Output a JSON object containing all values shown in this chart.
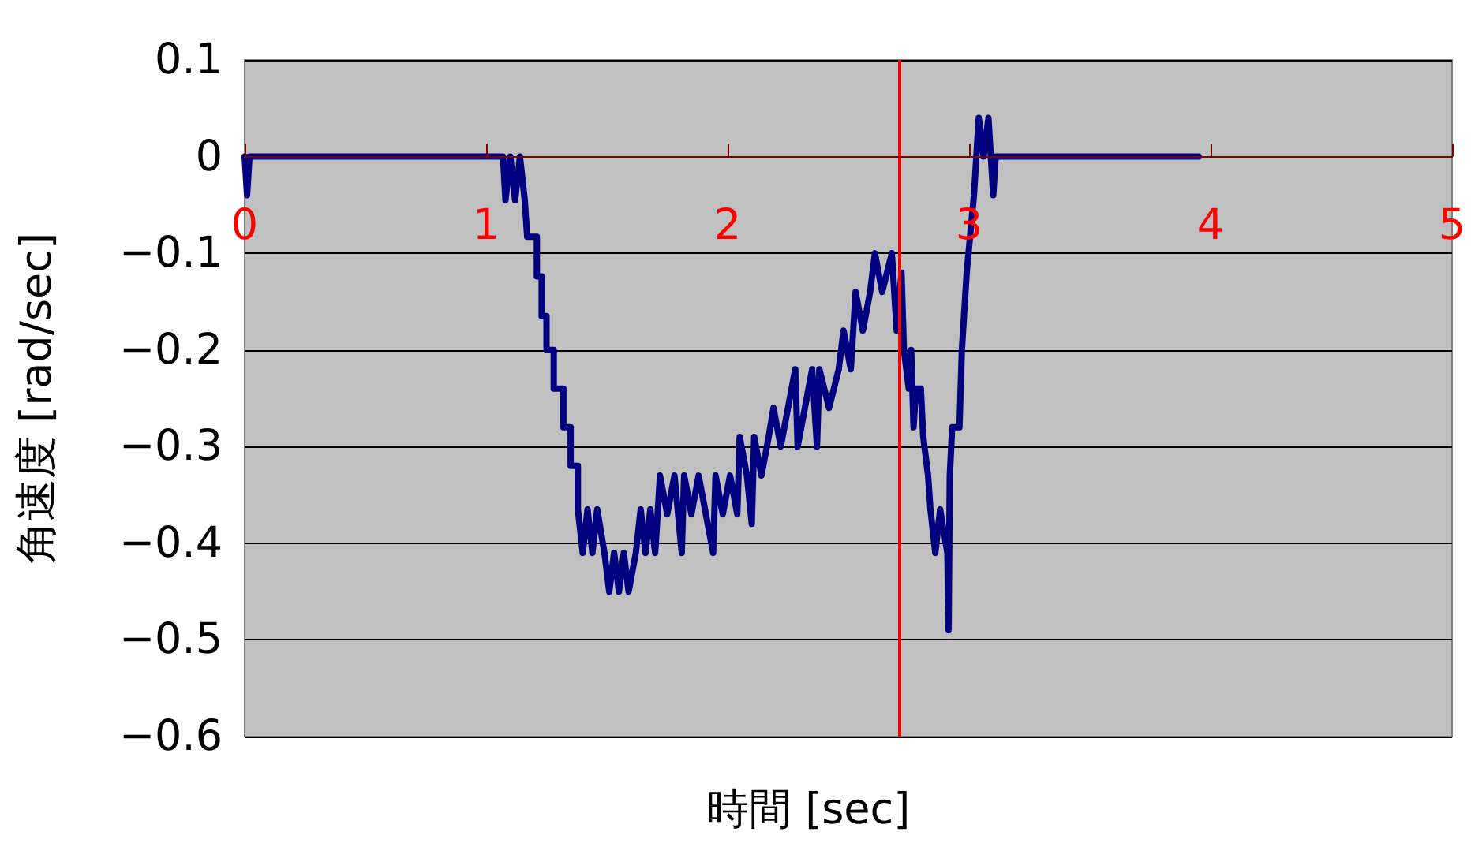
{
  "chart_data": {
    "type": "line",
    "xlabel": "時間 [sec]",
    "ylabel": "角速度 [rad/sec]",
    "xlim": [
      0,
      5
    ],
    "xticks": [
      0,
      1,
      2,
      3,
      4,
      5
    ],
    "ylim": [
      -0.6,
      0.1
    ],
    "yticks": [
      0.1,
      0,
      {
        "value": -0.1,
        "label": "−0.1"
      },
      {
        "value": -0.2,
        "label": "−0.2"
      },
      {
        "value": -0.3,
        "label": "−0.3"
      },
      {
        "value": -0.4,
        "label": "−0.4"
      },
      {
        "value": -0.5,
        "label": "−0.5"
      },
      {
        "value": -0.6,
        "label": "−0.6"
      }
    ],
    "grid": "y",
    "line_style": "solid",
    "ref_lines": [
      {
        "axis": "x",
        "value": 2.71,
        "color": "#ff0000"
      }
    ],
    "series": [
      {
        "color": "#000080",
        "x": [
          0,
          0.01,
          0.02,
          1.07,
          1.08,
          1.1,
          1.12,
          1.14,
          1.16,
          1.17,
          1.21,
          1.21,
          1.23,
          1.23,
          1.25,
          1.25,
          1.28,
          1.28,
          1.32,
          1.32,
          1.35,
          1.35,
          1.38,
          1.38,
          1.4,
          1.42,
          1.44,
          1.46,
          1.49,
          1.51,
          1.53,
          1.55,
          1.57,
          1.59,
          1.62,
          1.64,
          1.66,
          1.68,
          1.7,
          1.72,
          1.75,
          1.78,
          1.81,
          1.82,
          1.85,
          1.88,
          1.91,
          1.94,
          1.95,
          1.98,
          2.01,
          2.04,
          2.05,
          2.08,
          2.1,
          2.11,
          2.14,
          2.17,
          2.19,
          2.22,
          2.25,
          2.28,
          2.29,
          2.32,
          2.35,
          2.36,
          2.37,
          2.38,
          2.42,
          2.46,
          2.48,
          2.51,
          2.53,
          2.56,
          2.59,
          2.61,
          2.64,
          2.68,
          2.69,
          2.7,
          2.72,
          2.73,
          2.75,
          2.76,
          2.77,
          2.78,
          2.8,
          2.81,
          2.83,
          2.84,
          2.86,
          2.88,
          2.91,
          2.915,
          2.92,
          2.93,
          2.96,
          2.97,
          2.99,
          3.02,
          3.03,
          3.04,
          3.06,
          3.08,
          3.09,
          3.1,
          3.11,
          3.95
        ],
        "values": [
          0,
          -0.04,
          0,
          0,
          -0.045,
          0,
          -0.045,
          0,
          -0.045,
          -0.083,
          -0.083,
          -0.124,
          -0.124,
          -0.165,
          -0.165,
          -0.2,
          -0.2,
          -0.24,
          -0.24,
          -0.28,
          -0.28,
          -0.32,
          -0.32,
          -0.365,
          -0.41,
          -0.365,
          -0.41,
          -0.365,
          -0.41,
          -0.45,
          -0.41,
          -0.45,
          -0.41,
          -0.45,
          -0.41,
          -0.365,
          -0.41,
          -0.365,
          -0.41,
          -0.33,
          -0.37,
          -0.33,
          -0.41,
          -0.33,
          -0.37,
          -0.33,
          -0.37,
          -0.41,
          -0.33,
          -0.37,
          -0.33,
          -0.37,
          -0.29,
          -0.33,
          -0.38,
          -0.29,
          -0.33,
          -0.29,
          -0.26,
          -0.3,
          -0.26,
          -0.22,
          -0.3,
          -0.26,
          -0.22,
          -0.26,
          -0.3,
          -0.22,
          -0.26,
          -0.22,
          -0.18,
          -0.22,
          -0.14,
          -0.18,
          -0.14,
          -0.1,
          -0.14,
          -0.1,
          -0.14,
          -0.18,
          -0.12,
          -0.2,
          -0.24,
          -0.2,
          -0.28,
          -0.24,
          -0.24,
          -0.29,
          -0.33,
          -0.365,
          -0.41,
          -0.365,
          -0.41,
          -0.49,
          -0.33,
          -0.28,
          -0.28,
          -0.2,
          -0.12,
          -0.04,
          0,
          0.04,
          0,
          0.04,
          0,
          -0.04,
          0,
          0
        ]
      }
    ]
  }
}
